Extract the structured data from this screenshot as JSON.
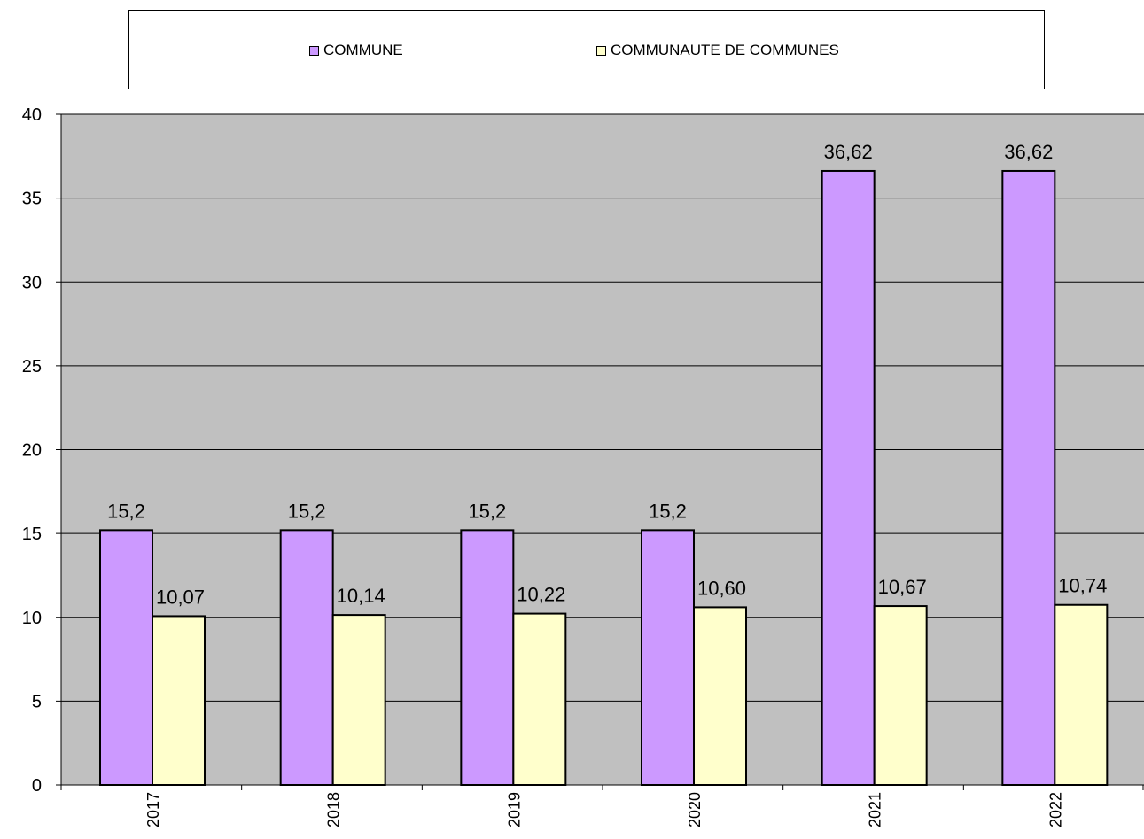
{
  "chart_data": {
    "type": "bar",
    "categories": [
      "2017",
      "2018",
      "2019",
      "2020",
      "2021",
      "2022"
    ],
    "series": [
      {
        "name": "COMMUNE",
        "color": "#CC99FF",
        "values": [
          15.2,
          15.2,
          15.2,
          15.2,
          36.62,
          36.62
        ],
        "labels": [
          "15,2",
          "15,2",
          "15,2",
          "15,2",
          "36,62",
          "36,62"
        ]
      },
      {
        "name": "COMMUNAUTE DE COMMUNES",
        "color": "#FFFFCC",
        "values": [
          10.07,
          10.14,
          10.22,
          10.6,
          10.67,
          10.74
        ],
        "labels": [
          "10,07",
          "10,14",
          "10,22",
          "10,60",
          "10,67",
          "10,74"
        ]
      }
    ],
    "ylim": [
      0,
      40
    ],
    "yticks": [
      "0",
      "5",
      "10",
      "15",
      "20",
      "25",
      "30",
      "35",
      "40"
    ],
    "plot_background": "#C0C0C0",
    "grid": true,
    "legend_position": "top"
  }
}
